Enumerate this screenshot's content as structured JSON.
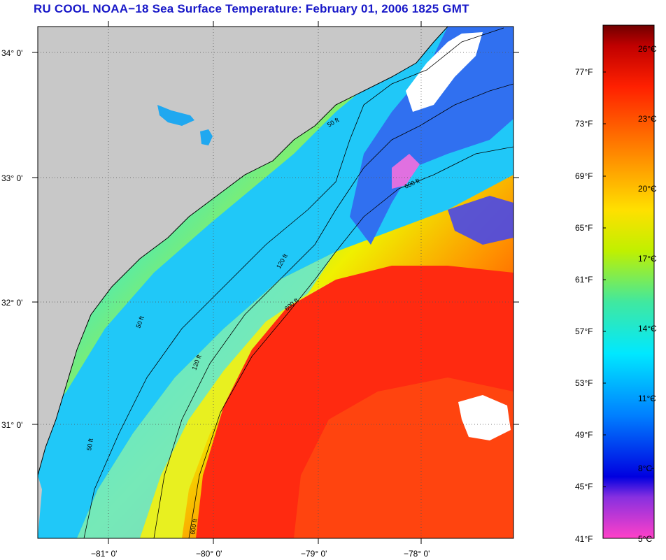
{
  "title": "RU COOL  NOAA−18  Sea Surface Temperature:  February 01, 2006 1825 GMT",
  "map": {
    "lat_labels": [
      "34° 0'",
      "33° 0'",
      "32° 0'",
      "31° 0'"
    ],
    "lon_labels": [
      "−81° 0'",
      "−80° 0'",
      "−79° 0'",
      "−78° 0'"
    ],
    "contours": [
      {
        "depth": "50 ft"
      },
      {
        "depth": "120 ft"
      },
      {
        "depth": "600 ft"
      }
    ],
    "colors": {
      "land": "#c8c8c8",
      "cloud": "#ffffff",
      "coast": "#000000"
    }
  },
  "colorbar": {
    "fahrenheit_labels": [
      "77°F",
      "73°F",
      "69°F",
      "65°F",
      "61°F",
      "57°F",
      "53°F",
      "49°F",
      "45°F",
      "41°F"
    ],
    "celsius_labels": [
      "26°C",
      "23°C",
      "20°C",
      "17°C",
      "14°C",
      "11°C",
      "8°C",
      "5°C"
    ],
    "stops": [
      "#ff40c8",
      "#8830e0",
      "#0000e0",
      "#0080ff",
      "#00e0ff",
      "#40e0a0",
      "#c0f000",
      "#ffe000",
      "#ff8000",
      "#ff2000",
      "#c00000",
      "#700000"
    ]
  }
}
